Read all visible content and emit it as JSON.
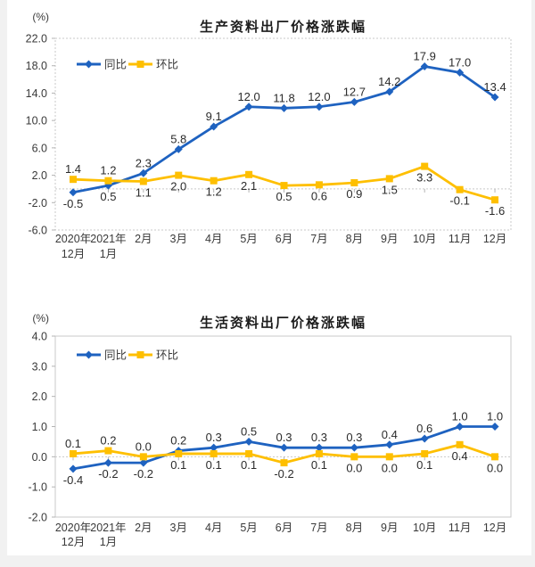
{
  "page": {
    "background_color": "#f1f1f1",
    "content_background_color": "#ffffff"
  },
  "chart_data": [
    {
      "type": "line",
      "title": "生产资料出厂价格涨跌幅",
      "unit": "(%)",
      "ylim": [
        -6,
        22
      ],
      "ytick_step": 4,
      "grid": false,
      "legend_position": "top-left",
      "categories": [
        [
          "2020年",
          "12月"
        ],
        [
          "2021年",
          "1月"
        ],
        [
          "2月"
        ],
        [
          "3月"
        ],
        [
          "4月"
        ],
        [
          "5月"
        ],
        [
          "6月"
        ],
        [
          "7月"
        ],
        [
          "8月"
        ],
        [
          "9月"
        ],
        [
          "10月"
        ],
        [
          "11月"
        ],
        [
          "12月"
        ]
      ],
      "series": [
        {
          "name": "同比",
          "color": "#1E62C0",
          "marker": "diamond",
          "values": [
            -0.5,
            0.5,
            2.3,
            5.8,
            9.1,
            12.0,
            11.8,
            12.0,
            12.7,
            14.2,
            17.9,
            17.0,
            13.4
          ],
          "label_side": [
            "below",
            "below",
            "above",
            "above",
            "above",
            "above",
            "above",
            "above",
            "above",
            "above",
            "above",
            "above",
            "above"
          ]
        },
        {
          "name": "环比",
          "color": "#FEBF00",
          "marker": "square",
          "values": [
            1.4,
            1.2,
            1.1,
            2.0,
            1.2,
            2.1,
            0.5,
            0.6,
            0.9,
            1.5,
            3.3,
            -0.1,
            -1.6
          ],
          "label_side": [
            "above",
            "above",
            "below",
            "below",
            "below",
            "below",
            "below",
            "below",
            "below",
            "below",
            "below",
            "below",
            "below"
          ]
        }
      ]
    },
    {
      "type": "line",
      "title": "生活资料出厂价格涨跌幅",
      "unit": "(%)",
      "ylim": [
        -2,
        4
      ],
      "ytick_step": 1,
      "grid": false,
      "legend_position": "top-left",
      "categories": [
        [
          "2020年",
          "12月"
        ],
        [
          "2021年",
          "1月"
        ],
        [
          "2月"
        ],
        [
          "3月"
        ],
        [
          "4月"
        ],
        [
          "5月"
        ],
        [
          "6月"
        ],
        [
          "7月"
        ],
        [
          "8月"
        ],
        [
          "9月"
        ],
        [
          "10月"
        ],
        [
          "11月"
        ],
        [
          "12月"
        ]
      ],
      "series": [
        {
          "name": "同比",
          "color": "#1E62C0",
          "marker": "diamond",
          "values": [
            -0.4,
            -0.2,
            -0.2,
            0.2,
            0.3,
            0.5,
            0.3,
            0.3,
            0.3,
            0.4,
            0.6,
            1.0,
            1.0
          ],
          "label_side": [
            "below",
            "below",
            "below",
            "above",
            "above",
            "above",
            "above",
            "above",
            "above",
            "above",
            "above",
            "above",
            "above"
          ]
        },
        {
          "name": "环比",
          "color": "#FEBF00",
          "marker": "square",
          "values": [
            0.1,
            0.2,
            0.0,
            0.1,
            0.1,
            0.1,
            -0.2,
            0.1,
            0.0,
            0.0,
            0.1,
            0.4,
            0.0
          ],
          "label_side": [
            "above",
            "above",
            "above",
            "below",
            "below",
            "below",
            "below",
            "below",
            "below",
            "below",
            "below",
            "below",
            "below"
          ]
        }
      ]
    }
  ]
}
